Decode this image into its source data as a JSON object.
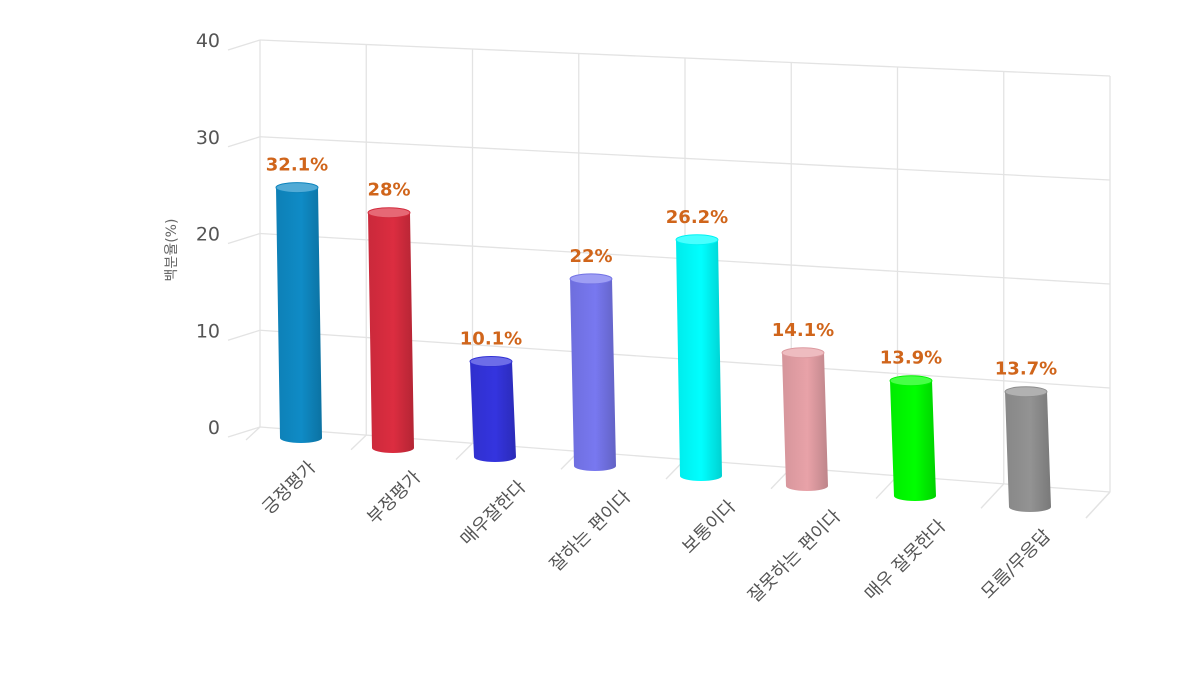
{
  "chart_data": {
    "type": "bar",
    "categories": [
      "긍정평가",
      "부정평가",
      "매우잘한다",
      "잘하는 편이다",
      "보통이다",
      "잘못하는 편이다",
      "매우 잘못한다",
      "모름/무응답"
    ],
    "values": [
      32.1,
      28,
      10.1,
      22,
      26.2,
      14.1,
      13.9,
      13.7
    ],
    "value_labels": [
      "32.1%",
      "28%",
      "10.1%",
      "22%",
      "26.2%",
      "14.1%",
      "13.9%",
      "13.7%"
    ],
    "colors": [
      "#0f8bc6",
      "#dc2d40",
      "#3434df",
      "#7878f0",
      "#00ffff",
      "#e8a2a8",
      "#00ff00",
      "#939393"
    ],
    "ylabel": "백분율(%)",
    "ylim": [
      0,
      40
    ],
    "yticks": [
      0,
      10,
      20,
      30,
      40
    ],
    "grid": true,
    "style": "3d-cylinder"
  }
}
